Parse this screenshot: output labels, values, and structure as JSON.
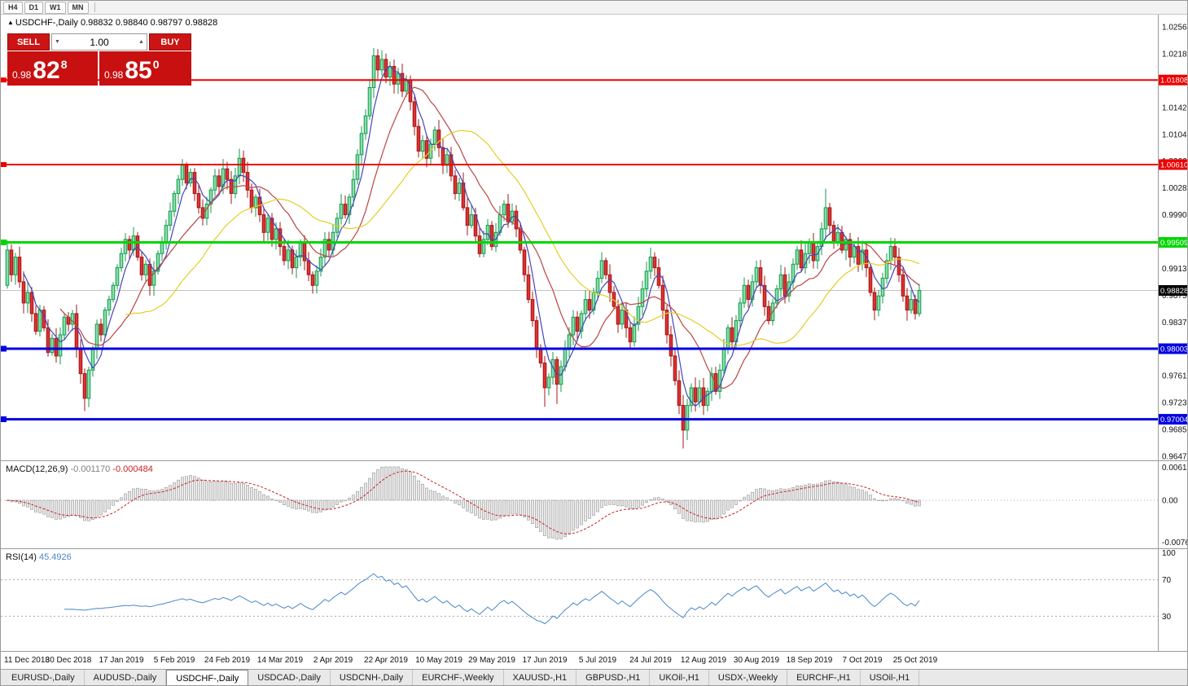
{
  "toolbar": {
    "timeframes": [
      "H4",
      "D1",
      "W1",
      "MN"
    ]
  },
  "title_bar": {
    "symbol": "USDCHF-,Daily",
    "open": "0.98832",
    "high": "0.98840",
    "low": "0.98797",
    "close": "0.98828"
  },
  "icons": {
    "collapse_arrow": "▲",
    "volume_down": "▼",
    "volume_up": "▲"
  },
  "trade_panel": {
    "sell_label": "SELL",
    "buy_label": "BUY",
    "volume": "1.00",
    "sell_price": {
      "prefix": "0.98",
      "big": "82",
      "sup": "8"
    },
    "buy_price": {
      "prefix": "0.98",
      "big": "85",
      "sup": "0"
    }
  },
  "price_axis": {
    "labels": [
      "1.02560",
      "1.02180",
      "1.01800",
      "1.01420",
      "1.01040",
      "1.00660",
      "1.00280",
      "0.99900",
      "0.99520",
      "0.99130",
      "0.98750",
      "0.98370",
      "0.97990",
      "0.97610",
      "0.97230",
      "0.96850",
      "0.96470"
    ]
  },
  "levels": [
    {
      "label": "1.01808",
      "value": 1.01808,
      "color": "#ee0000",
      "width": 2
    },
    {
      "label": "1.00610",
      "value": 1.0061,
      "color": "#ee0000",
      "width": 2
    },
    {
      "label": "0.99509",
      "value": 0.99509,
      "color": "#00d600",
      "width": 3
    },
    {
      "label": "0.98003",
      "value": 0.98003,
      "color": "#0000e0",
      "width": 3
    },
    {
      "label": "0.97004",
      "value": 0.97004,
      "color": "#0000e0",
      "width": 3
    }
  ],
  "current_price": {
    "label": "0.98828",
    "value": 0.98828
  },
  "macd_panel": {
    "title": "MACD(12,26,9)",
    "value_main": "-0.001170",
    "value_signal": "-0.000484",
    "axis_labels": [
      "0.00613",
      "0.00",
      "-0.00761"
    ],
    "axis_max": 0.00613,
    "axis_min": -0.00761
  },
  "rsi_panel": {
    "title": "RSI(14)",
    "value": "45.4926",
    "axis_labels": [
      "100",
      "70",
      "30"
    ],
    "guide_high": 70,
    "guide_low": 30
  },
  "date_axis": {
    "labels": [
      "11 Dec 2018",
      "30 Dec 2018",
      "17 Jan 2019",
      "5 Feb 2019",
      "24 Feb 2019",
      "14 Mar 2019",
      "2 Apr 2019",
      "22 Apr 2019",
      "10 May 2019",
      "29 May 2019",
      "17 Jun 2019",
      "5 Jul 2019",
      "24 Jul 2019",
      "12 Aug 2019",
      "30 Aug 2019",
      "18 Sep 2019",
      "7 Oct 2019",
      "25 Oct 2019"
    ],
    "tick_indices": [
      2,
      15,
      28,
      41,
      54,
      67,
      80,
      93,
      106,
      119,
      132,
      145,
      158,
      171,
      184,
      197,
      210,
      223
    ]
  },
  "tabs": [
    {
      "label": "EURUSD-,Daily"
    },
    {
      "label": "AUDUSD-,Daily"
    },
    {
      "label": "USDCHF-,Daily",
      "active": true
    },
    {
      "label": "USDCAD-,Daily"
    },
    {
      "label": "USDCNH-,Daily"
    },
    {
      "label": "EURCHF-,Weekly"
    },
    {
      "label": "XAUUSD-,H1"
    },
    {
      "label": "GBPUSD-,H1"
    },
    {
      "label": "UKOil-,H1"
    },
    {
      "label": "USDX-,Weekly"
    },
    {
      "label": "EURCHF-,H1"
    },
    {
      "label": "USOil-,H1"
    }
  ],
  "colors": {
    "bull_fill": "#86dfa8",
    "bull_border": "#169a4e",
    "bear_fill": "#e03030",
    "bear_border": "#a01818",
    "ma_fast": "#4444bb",
    "ma_mid": "#bb4444",
    "ma_slow": "#e3cf26",
    "macd_hist_fill": "#e7e7e7",
    "macd_hist_border": "#999999",
    "macd_signal": "#cc2222",
    "rsi_line": "#4a86c8",
    "current_price_bg": "#000000",
    "trade_red": "#cc1414"
  },
  "chart_data": {
    "type": "candlestick",
    "symbol": "USDCHF",
    "timeframe": "Daily",
    "title": "USDCHF-,Daily",
    "ohlc_display": {
      "open": 0.98832,
      "high": 0.9884,
      "low": 0.98797,
      "close": 0.98828
    },
    "y_axis": {
      "top": 1.0256,
      "bottom": 0.9647,
      "tick_step": 0.0038
    },
    "horizontal_levels": [
      1.01808,
      1.0061,
      0.99509,
      0.98003,
      0.97004
    ],
    "first_open": 0.989,
    "closes": [
      0.994,
      0.9905,
      0.993,
      0.9895,
      0.9865,
      0.988,
      0.985,
      0.9825,
      0.9855,
      0.983,
      0.9795,
      0.9815,
      0.979,
      0.982,
      0.9845,
      0.9835,
      0.985,
      0.98,
      0.9765,
      0.973,
      0.977,
      0.98,
      0.9835,
      0.982,
      0.9855,
      0.987,
      0.989,
      0.9915,
      0.9935,
      0.9955,
      0.994,
      0.996,
      0.993,
      0.9905,
      0.992,
      0.989,
      0.991,
      0.9935,
      0.995,
      0.9975,
      0.9995,
      1.002,
      1.004,
      1.006,
      1.0035,
      1.005,
      1.002,
      1.0,
      0.9985,
      1.0005,
      1.0025,
      1.0045,
      1.003,
      1.0055,
      1.004,
      1.002,
      1.0045,
      1.007,
      1.005,
      1.0025,
      1.0,
      1.0015,
      0.999,
      0.9965,
      0.9985,
      0.9955,
      0.997,
      0.9945,
      0.9925,
      0.994,
      0.9915,
      0.993,
      0.995,
      0.9925,
      0.9905,
      0.989,
      0.991,
      0.993,
      0.9955,
      0.994,
      0.9965,
      0.9985,
      1.0005,
      0.999,
      1.0015,
      1.004,
      1.0075,
      1.0105,
      1.013,
      1.017,
      1.0215,
      1.0195,
      1.021,
      1.0185,
      1.02,
      1.0175,
      1.019,
      1.0165,
      1.018,
      1.015,
      1.0115,
      1.008,
      1.0095,
      1.007,
      1.009,
      1.011,
      1.0085,
      1.006,
      1.0075,
      1.0045,
      1.002,
      1.0035,
      1.0,
      0.9975,
      0.999,
      0.996,
      0.9935,
      0.9955,
      0.9975,
      0.9945,
      0.9965,
      0.999,
      1.0005,
      0.998,
      0.9995,
      0.997,
      0.994,
      0.9905,
      0.987,
      0.984,
      0.98,
      0.978,
      0.9745,
      0.976,
      0.9785,
      0.975,
      0.9775,
      0.98,
      0.982,
      0.9845,
      0.9825,
      0.985,
      0.987,
      0.9855,
      0.988,
      0.99,
      0.9925,
      0.9905,
      0.988,
      0.986,
      0.9835,
      0.9855,
      0.983,
      0.981,
      0.9835,
      0.986,
      0.9885,
      0.991,
      0.993,
      0.9915,
      0.989,
      0.9855,
      0.982,
      0.979,
      0.9755,
      0.972,
      0.9685,
      0.972,
      0.9745,
      0.9725,
      0.9745,
      0.972,
      0.974,
      0.9765,
      0.974,
      0.977,
      0.98,
      0.983,
      0.981,
      0.984,
      0.9865,
      0.989,
      0.987,
      0.9895,
      0.9915,
      0.989,
      0.986,
      0.984,
      0.9865,
      0.9885,
      0.9905,
      0.9875,
      0.9895,
      0.992,
      0.994,
      0.9915,
      0.9935,
      0.995,
      0.9925,
      0.9945,
      0.997,
      1.0,
      0.9975,
      0.995,
      0.9965,
      0.994,
      0.9955,
      0.993,
      0.9945,
      0.992,
      0.994,
      0.9915,
      0.988,
      0.9855,
      0.9875,
      0.99,
      0.9925,
      0.9945,
      0.993,
      0.9905,
      0.9875,
      0.9855,
      0.987,
      0.985,
      0.98828
    ],
    "wick_overrides": [
      {
        "i": 19,
        "l": 0.9712
      },
      {
        "i": 90,
        "h": 1.0226
      },
      {
        "i": 132,
        "l": 0.9718
      },
      {
        "i": 135,
        "l": 0.9722
      },
      {
        "i": 166,
        "l": 0.9659
      },
      {
        "i": 201,
        "h": 1.0027
      }
    ]
  }
}
